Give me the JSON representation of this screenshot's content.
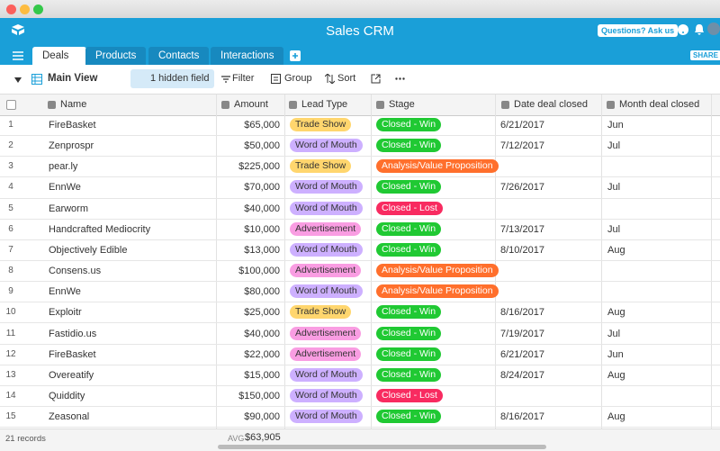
{
  "header": {
    "title": "Sales CRM",
    "help_button": "Questions? Ask us",
    "share_button": "SHARE",
    "tabs": [
      "Deals",
      "Products",
      "Contacts",
      "Interactions"
    ]
  },
  "toolbar": {
    "view_name": "Main View",
    "hidden_fields": "1 hidden field",
    "filter": "Filter",
    "group": "Group",
    "sort": "Sort"
  },
  "table": {
    "columns": [
      "Name",
      "Amount",
      "Lead Type",
      "Stage",
      "Date deal closed",
      "Month deal closed"
    ],
    "tag_colors": {
      "Trade Show": "#ffd66e",
      "Word of Mouth": "#cdb0ff",
      "Advertisement": "#f99de2",
      "Closed - Win": "#20c933",
      "Closed - Lost": "#f82b60",
      "Analysis/Value Proposition": "#ff6f2c"
    },
    "rows": [
      {
        "num": "1",
        "name": "FireBasket",
        "amount": "$65,000",
        "lead_type": "Trade Show",
        "stage": "Closed - Win",
        "date": "6/21/2017",
        "month": "Jun"
      },
      {
        "num": "2",
        "name": "Zenprospr",
        "amount": "$50,000",
        "lead_type": "Word of Mouth",
        "stage": "Closed - Win",
        "date": "7/12/2017",
        "month": "Jul"
      },
      {
        "num": "3",
        "name": "pear.ly",
        "amount": "$225,000",
        "lead_type": "Trade Show",
        "stage": "Analysis/Value Proposition"
      },
      {
        "num": "4",
        "name": "EnnWe",
        "amount": "$70,000",
        "lead_type": "Word of Mouth",
        "stage": "Closed - Win",
        "date": "7/26/2017",
        "month": "Jul"
      },
      {
        "num": "5",
        "name": "Earworm",
        "amount": "$40,000",
        "lead_type": "Word of Mouth",
        "stage": "Closed - Lost"
      },
      {
        "num": "6",
        "name": "Handcrafted Mediocrity",
        "amount": "$10,000",
        "lead_type": "Advertisement",
        "stage": "Closed - Win",
        "date": "7/13/2017",
        "month": "Jul"
      },
      {
        "num": "7",
        "name": "Objectively Edible",
        "amount": "$13,000",
        "lead_type": "Word of Mouth",
        "stage": "Closed - Win",
        "date": "8/10/2017",
        "month": "Aug"
      },
      {
        "num": "8",
        "name": "Consens.us",
        "amount": "$100,000",
        "lead_type": "Advertisement",
        "stage": "Analysis/Value Proposition"
      },
      {
        "num": "9",
        "name": "EnnWe",
        "amount": "$80,000",
        "lead_type": "Word of Mouth",
        "stage": "Analysis/Value Proposition"
      },
      {
        "num": "10",
        "name": "Exploitr",
        "amount": "$25,000",
        "lead_type": "Trade Show",
        "stage": "Closed - Win",
        "date": "8/16/2017",
        "month": "Aug"
      },
      {
        "num": "11",
        "name": "Fastidio.us",
        "amount": "$40,000",
        "lead_type": "Advertisement",
        "stage": "Closed - Win",
        "date": "7/19/2017",
        "month": "Jul"
      },
      {
        "num": "12",
        "name": "FireBasket",
        "amount": "$22,000",
        "lead_type": "Advertisement",
        "stage": "Closed - Win",
        "date": "6/21/2017",
        "month": "Jun"
      },
      {
        "num": "13",
        "name": "Overeatify",
        "amount": "$15,000",
        "lead_type": "Word of Mouth",
        "stage": "Closed - Win",
        "date": "8/24/2017",
        "month": "Aug"
      },
      {
        "num": "14",
        "name": "Quiddity",
        "amount": "$150,000",
        "lead_type": "Word of Mouth",
        "stage": "Closed - Lost"
      },
      {
        "num": "15",
        "name": "Zeasonal",
        "amount": "$90,000",
        "lead_type": "Word of Mouth",
        "stage": "Closed - Win",
        "date": "8/16/2017",
        "month": "Aug"
      }
    ]
  },
  "footer": {
    "record_count": "21 records",
    "summary_label": "AVG",
    "summary_value": "$63,905"
  }
}
